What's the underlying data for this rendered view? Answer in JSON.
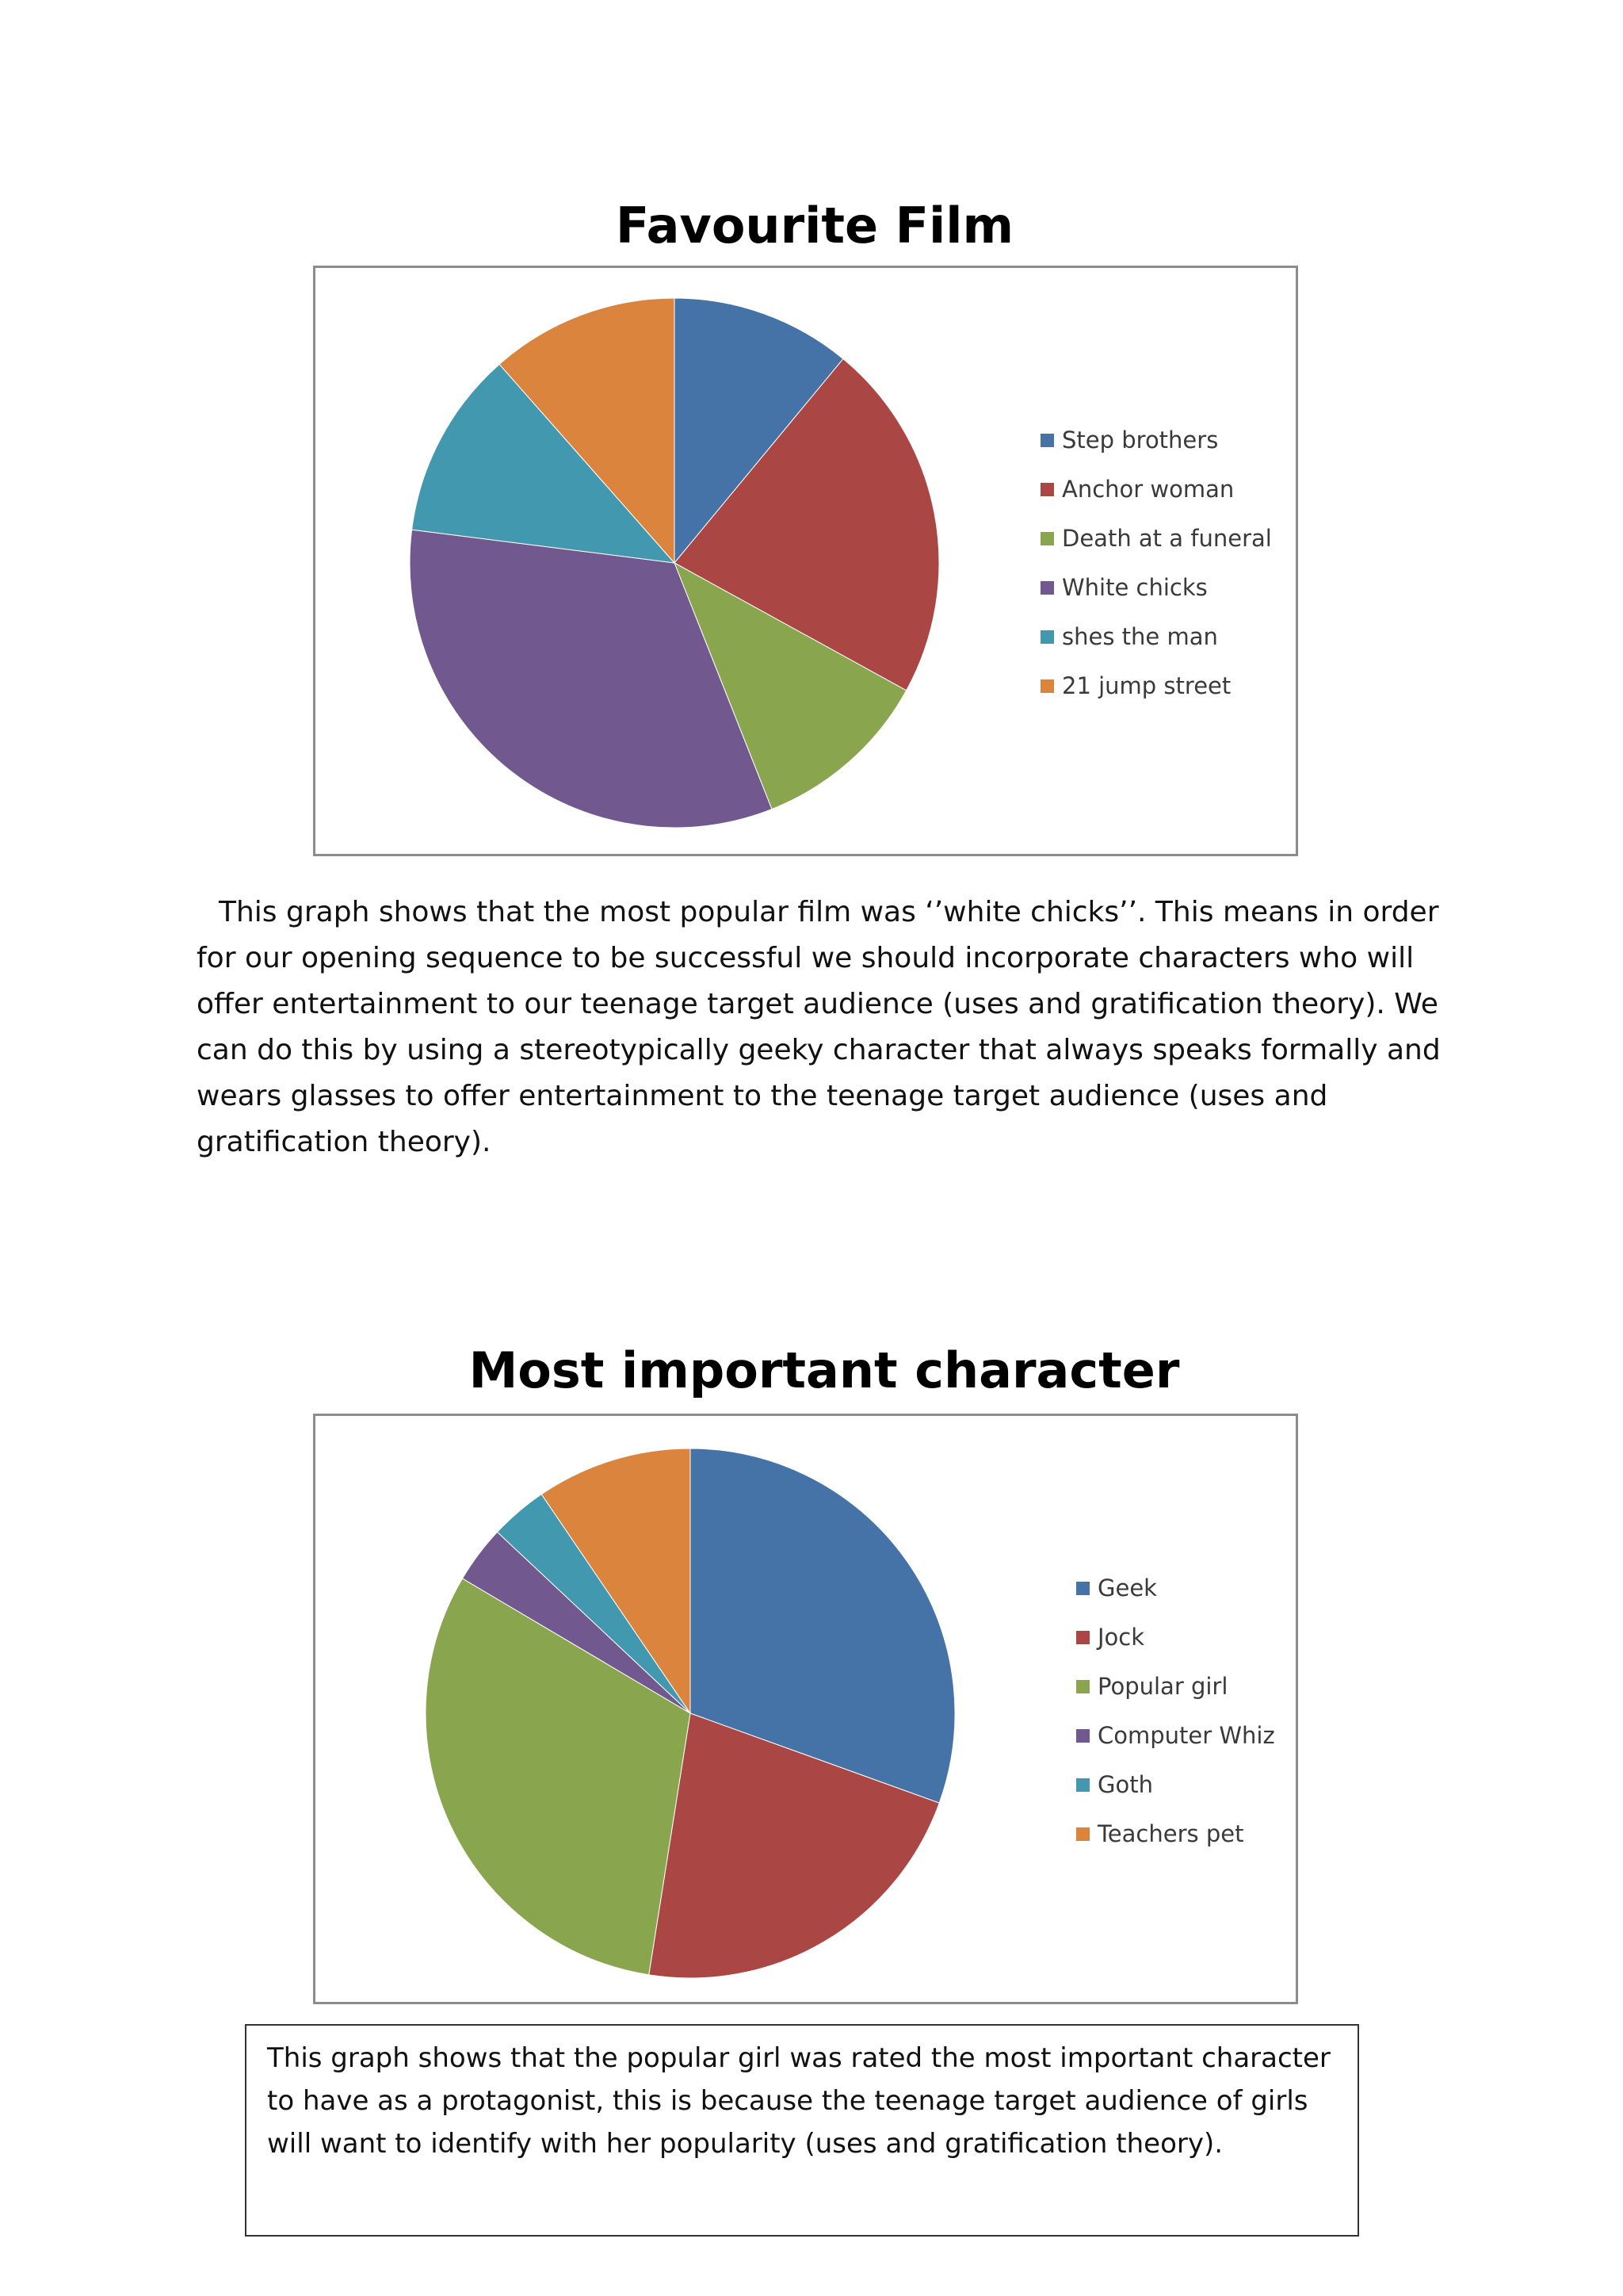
{
  "chart_data": [
    {
      "type": "pie",
      "title": "Favourite Film",
      "categories": [
        "Step brothers",
        "Anchor woman",
        "Death at a funeral",
        "White chicks",
        "shes the man",
        "21 jump street"
      ],
      "values": [
        11,
        22,
        11,
        33,
        11.5,
        11.5
      ],
      "colors": [
        "#4572a7",
        "#aa4643",
        "#89a54e",
        "#71588f",
        "#4198af",
        "#db843d"
      ],
      "legend": "right"
    },
    {
      "type": "pie",
      "title": "Most important character",
      "categories": [
        "Geek",
        "Jock",
        "Popular girl",
        "Computer Whiz",
        "Goth",
        "Teachers pet"
      ],
      "values": [
        30.5,
        22,
        31,
        3.5,
        3.5,
        9.5
      ],
      "colors": [
        "#4572a7",
        "#aa4643",
        "#89a54e",
        "#71588f",
        "#4198af",
        "#db843d"
      ],
      "legend": "right"
    }
  ],
  "paragraph1": "This graph shows that the most popular film was ‘’white chicks’’. This means in order for our opening sequence to be successful we should incorporate characters who will offer entertainment to our teenage target audience (uses and gratification theory). We can do this by using a stereotypically geeky character that always speaks formally and wears glasses to offer entertainment to the teenage target audience (uses and gratification theory).",
  "paragraph2": "This graph shows that the popular girl was rated the most important character to have as a protagonist, this is because the teenage target audience of girls will want to identify with her popularity (uses and gratification theory)."
}
